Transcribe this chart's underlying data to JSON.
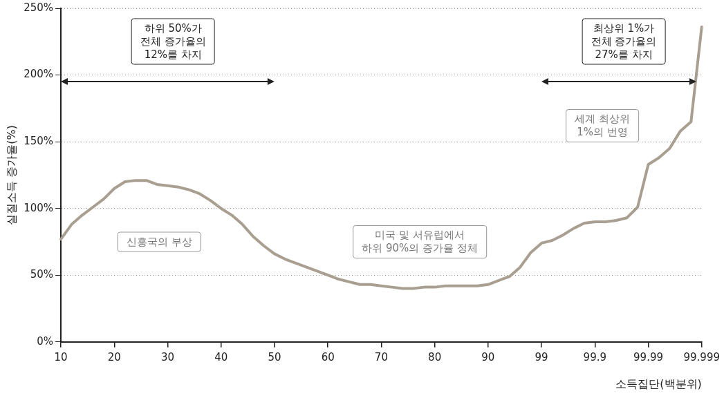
{
  "chart_data": {
    "type": "line",
    "xlabel": "소득집단(백분위)",
    "ylabel": "실질소득 증가율(%)",
    "categories": [
      "10",
      null,
      null,
      null,
      null,
      "20",
      null,
      null,
      null,
      null,
      "30",
      null,
      null,
      null,
      null,
      "40",
      null,
      null,
      null,
      null,
      "50",
      null,
      null,
      null,
      null,
      "60",
      null,
      null,
      null,
      null,
      "70",
      null,
      null,
      null,
      null,
      "80",
      null,
      null,
      null,
      null,
      "90",
      null,
      null,
      null,
      null,
      "99",
      null,
      null,
      null,
      null,
      "99.9",
      null,
      null,
      null,
      null,
      "99.99",
      null,
      null,
      null,
      null,
      "99.999"
    ],
    "series": [
      {
        "color": "#a89f90",
        "values": [
          77,
          88,
          95,
          101,
          107,
          115,
          120,
          121,
          121,
          118,
          117,
          116,
          114,
          111,
          106,
          100,
          95,
          88,
          79,
          72,
          66,
          62,
          59,
          56,
          53,
          50,
          47,
          45,
          43,
          43,
          42,
          41,
          40,
          40,
          41,
          41,
          42,
          42,
          42,
          42,
          43,
          46,
          49,
          56,
          67,
          74,
          76,
          80,
          85,
          89,
          90,
          90,
          91,
          93,
          101,
          133,
          138,
          145,
          158,
          165,
          236
        ]
      }
    ],
    "ylim": [
      0,
      250
    ],
    "yticks": [
      {
        "value": 0,
        "label": "0%"
      },
      {
        "value": 50,
        "label": "50%"
      },
      {
        "value": 100,
        "label": "100%"
      },
      {
        "value": 150,
        "label": "150%"
      },
      {
        "value": 200,
        "label": "200%"
      },
      {
        "value": 250,
        "label": "250%"
      }
    ],
    "grid": "y",
    "marker": "none",
    "line_style": "solid",
    "legend": false,
    "annotations": [
      "하위 50%가\n전체 증가율의\n12%를 차지",
      "최상위 1%가\n전체 증가율의\n27%를 차지",
      "세계 최상위\n1%의 번영",
      "신흥국의 부상",
      "미국 및 서유럽에서\n하위 90%의 증가율 정체"
    ]
  }
}
